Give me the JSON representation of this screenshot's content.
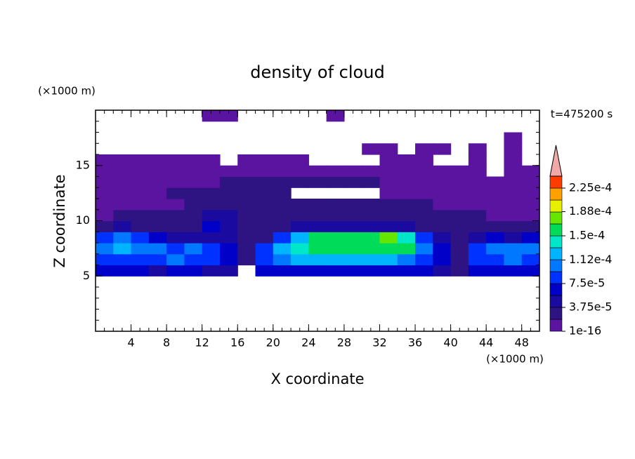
{
  "chart_data": {
    "type": "contour",
    "title": "density of cloud",
    "x_label": "X coordinate",
    "y_label": "Z coordinate",
    "x_unit": "(×1000 m)",
    "y_unit": "(×1000 m)",
    "time_label": "t=475200 s",
    "xlim": [
      0,
      50
    ],
    "ylim": [
      0,
      20
    ],
    "xticks": [
      4,
      8,
      12,
      16,
      20,
      24,
      28,
      32,
      36,
      40,
      44,
      48
    ],
    "yticks": [
      5,
      10,
      15
    ],
    "minor_tick_interval": 1,
    "x": [
      1,
      3,
      5,
      7,
      9,
      11,
      13,
      15,
      17,
      19,
      21,
      23,
      25,
      27,
      29,
      31,
      33,
      35,
      37,
      39,
      41,
      43,
      45,
      47,
      49
    ],
    "y": [
      5.5,
      6.5,
      7.5,
      8.5,
      9.5,
      10.5,
      11.5,
      12.5,
      13.5,
      14.5,
      15.5,
      16.5,
      17.5,
      18.5,
      19.5
    ],
    "z": [
      [
        6e-05,
        6e-05,
        6e-05,
        5e-05,
        6e-05,
        6e-05,
        5e-05,
        4e-05,
        null,
        6e-05,
        7e-05,
        7e-05,
        7e-05,
        7e-05,
        7e-05,
        7e-05,
        7e-05,
        7e-05,
        7e-05,
        5e-05,
        3e-05,
        6e-05,
        6e-05,
        6e-05,
        6e-05
      ],
      [
        9e-05,
        9e-05,
        9e-05,
        9e-05,
        0.0001,
        9e-05,
        9e-05,
        6e-05,
        2e-05,
        9e-05,
        0.00011,
        0.00012,
        0.00012,
        0.00012,
        0.00012,
        0.00012,
        0.00012,
        0.00011,
        9e-05,
        6e-05,
        2e-05,
        8e-05,
        9e-05,
        0.0001,
        9e-05
      ],
      [
        0.00011,
        0.00012,
        0.00011,
        0.00011,
        8e-05,
        0.0001,
        9e-05,
        6e-05,
        3e-05,
        8e-05,
        0.00013,
        0.00014,
        0.00015,
        0.00015,
        0.00015,
        0.00016,
        0.00016,
        0.00015,
        0.00011,
        6e-05,
        3e-05,
        9e-05,
        0.00011,
        0.00011,
        0.0001
      ],
      [
        8e-05,
        0.00011,
        9e-05,
        7e-05,
        5e-05,
        4e-05,
        5e-05,
        4e-05,
        2e-05,
        3e-05,
        9e-05,
        0.00013,
        0.00015,
        0.00015,
        0.00016,
        0.00016,
        0.00018,
        0.00014,
        8e-05,
        4e-05,
        3e-05,
        4e-05,
        6e-05,
        5e-05,
        6e-05
      ],
      [
        3e-05,
        4e-05,
        3e-05,
        3e-05,
        3e-05,
        3e-05,
        6e-05,
        5e-05,
        3e-05,
        2.5e-05,
        3e-05,
        4e-05,
        5e-05,
        5e-05,
        5e-05,
        5e-05,
        5e-05,
        4e-05,
        3e-05,
        3e-05,
        3e-05,
        3e-05,
        3e-05,
        3e-05,
        3e-05
      ],
      [
        1.5e-05,
        2.5e-05,
        2.5e-05,
        2e-05,
        2e-05,
        2.5e-05,
        5e-05,
        4e-05,
        2.5e-05,
        2.5e-05,
        3e-05,
        3e-05,
        3e-05,
        3e-05,
        3e-05,
        3e-05,
        3e-05,
        3e-05,
        2.5e-05,
        2.5e-05,
        2e-05,
        2e-05,
        1.5e-05,
        1.5e-05,
        1.5e-05
      ],
      [
        1.5e-05,
        1.5e-05,
        1.5e-05,
        1.5e-05,
        1.5e-05,
        2e-05,
        2.5e-05,
        2.5e-05,
        2.5e-05,
        2e-05,
        2e-05,
        2e-05,
        2e-05,
        2e-05,
        2e-05,
        2e-05,
        2e-05,
        2e-05,
        2e-05,
        1.5e-05,
        1.5e-05,
        1.5e-05,
        1e-05,
        1e-05,
        1e-05
      ],
      [
        1.2e-05,
        1.2e-05,
        1.2e-05,
        1.2e-05,
        2e-05,
        2.5e-05,
        2.5e-05,
        2.5e-05,
        2.5e-05,
        2e-05,
        2e-05,
        null,
        null,
        null,
        null,
        null,
        1.5e-05,
        1.5e-05,
        1e-05,
        1e-05,
        1e-05,
        1e-05,
        8e-06,
        8e-06,
        8e-06
      ],
      [
        8e-06,
        8e-06,
        1e-05,
        1e-05,
        1e-05,
        1.2e-05,
        1.5e-05,
        2e-05,
        2e-05,
        2e-05,
        2e-05,
        2e-05,
        2e-05,
        2e-05,
        2e-05,
        2e-05,
        1.5e-05,
        1.2e-05,
        1e-05,
        1e-05,
        8e-06,
        8e-06,
        8e-06,
        8e-06,
        8e-06
      ],
      [
        8e-06,
        8e-06,
        8e-06,
        8e-06,
        8e-06,
        8e-06,
        8e-06,
        8e-06,
        1e-05,
        1e-05,
        1e-05,
        1e-05,
        1e-05,
        8e-06,
        8e-06,
        8e-06,
        8e-06,
        8e-06,
        8e-06,
        8e-06,
        8e-06,
        8e-06,
        null,
        8e-06,
        8e-06
      ],
      [
        5e-06,
        5e-06,
        5e-06,
        5e-06,
        5e-06,
        5e-06,
        5e-06,
        null,
        5e-06,
        5e-06,
        5e-06,
        5e-06,
        null,
        null,
        null,
        null,
        5e-06,
        5e-06,
        5e-06,
        null,
        null,
        5e-06,
        null,
        5e-06,
        null
      ],
      [
        null,
        null,
        null,
        null,
        null,
        null,
        null,
        null,
        null,
        null,
        null,
        null,
        null,
        null,
        null,
        5e-06,
        5e-06,
        null,
        5e-06,
        5e-06,
        null,
        5e-06,
        null,
        5e-06,
        null
      ],
      [
        null,
        null,
        null,
        null,
        null,
        null,
        null,
        null,
        null,
        null,
        null,
        null,
        null,
        null,
        null,
        null,
        null,
        null,
        null,
        null,
        null,
        null,
        null,
        5e-06,
        null
      ],
      [
        null,
        null,
        null,
        null,
        null,
        null,
        null,
        null,
        null,
        null,
        null,
        null,
        null,
        null,
        null,
        null,
        null,
        null,
        null,
        null,
        null,
        null,
        null,
        null,
        null
      ],
      [
        null,
        null,
        null,
        null,
        null,
        null,
        5e-06,
        5e-06,
        null,
        null,
        null,
        null,
        null,
        5e-06,
        null,
        null,
        null,
        null,
        null,
        null,
        null,
        null,
        null,
        null,
        null
      ]
    ],
    "levels": [
      1e-16,
      1.875e-05,
      3.75e-05,
      5.625e-05,
      7.5e-05,
      9.375e-05,
      0.0001125,
      0.00013125,
      0.00015,
      0.00016875,
      0.0001875,
      0.00020625,
      0.000225,
      0.00024375
    ],
    "colors": [
      "#5a14a0",
      "#2d1482",
      "#1a0aa0",
      "#0000c8",
      "#0032ff",
      "#0078ff",
      "#00b4ff",
      "#00e6c8",
      "#00dc5a",
      "#64e600",
      "#e6f000",
      "#ffa000",
      "#ff3c00"
    ],
    "extend_color": "#f0a8a8",
    "colorbar_ticks": [
      {
        "value": 1e-16,
        "label": "1e-16"
      },
      {
        "value": 3.75e-05,
        "label": "3.75e-5"
      },
      {
        "value": 7.5e-05,
        "label": "7.5e-5"
      },
      {
        "value": 0.000112,
        "label": "1.12e-4"
      },
      {
        "value": 0.00015,
        "label": "1.5e-4"
      },
      {
        "value": 0.000188,
        "label": "1.88e-4"
      },
      {
        "value": 0.000225,
        "label": "2.25e-4"
      }
    ]
  }
}
